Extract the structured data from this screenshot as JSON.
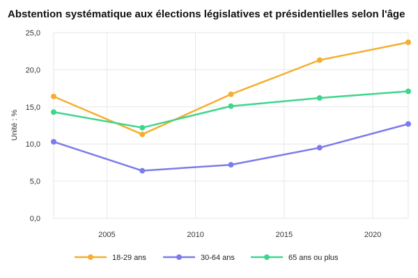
{
  "chart_data": {
    "type": "line",
    "title": "Abstention systématique aux élections législatives et présidentielles selon l'âge",
    "ylabel": "Unité : %",
    "xlabel": "",
    "x": [
      2002,
      2007,
      2012,
      2017,
      2022
    ],
    "xlim": [
      2002,
      2022
    ],
    "ylim": [
      0,
      25
    ],
    "xticks": [
      2005,
      2010,
      2015,
      2020
    ],
    "yticks": [
      "0,0",
      "5,0",
      "10,0",
      "15,0",
      "20,0",
      "25,0"
    ],
    "grid": true,
    "legend": "bottom",
    "series": [
      {
        "name": "18-29 ans",
        "color": "#F5AE2D",
        "values": [
          16.4,
          11.3,
          16.7,
          21.3,
          23.7
        ]
      },
      {
        "name": "30-64 ans",
        "color": "#7B7BEB",
        "values": [
          10.3,
          6.4,
          7.2,
          9.5,
          12.7
        ]
      },
      {
        "name": "65 ans ou plus",
        "color": "#3DD68C",
        "values": [
          14.3,
          12.2,
          15.1,
          16.2,
          17.1
        ]
      }
    ]
  }
}
